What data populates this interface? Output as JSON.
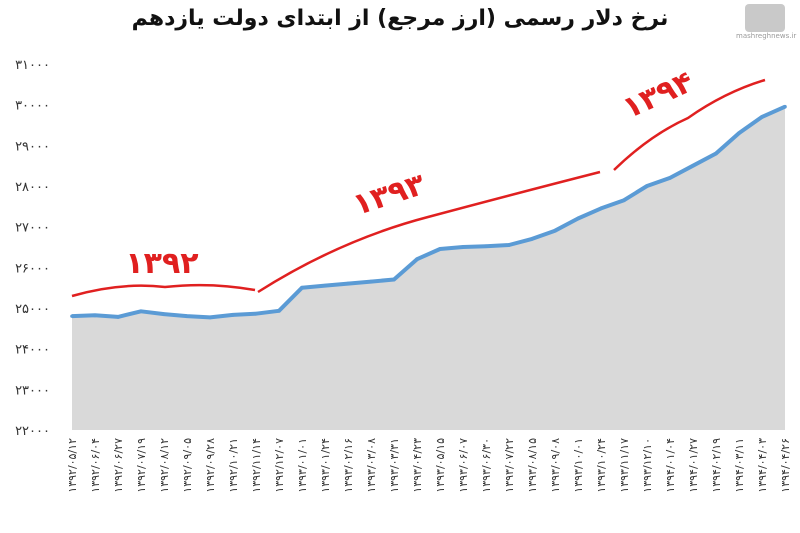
{
  "chart_data": {
    "type": "area",
    "title": "نرخ دلار رسمی (ارز مرجع) از ابتدای دولت یازدهم",
    "ylim": [
      22000,
      31000
    ],
    "y_ticks": [
      22000,
      23000,
      24000,
      25000,
      26000,
      27000,
      28000,
      29000,
      30000,
      31000
    ],
    "y_tick_labels": [
      "۲۲۰۰۰",
      "۲۳۰۰۰",
      "۲۴۰۰۰",
      "۲۵۰۰۰",
      "۲۶۰۰۰",
      "۲۷۰۰۰",
      "۲۸۰۰۰",
      "۲۹۰۰۰",
      "۳۰۰۰۰",
      "۳۱۰۰۰"
    ],
    "categories": [
      "۱۳۹۲/۰۵/۱۲",
      "۱۳۹۲/۰۶/۰۴",
      "۱۳۹۲/۰۶/۲۷",
      "۱۳۹۲/۰۷/۱۹",
      "۱۳۹۲/۰۸/۱۲",
      "۱۳۹۲/۰۹/۰۵",
      "۱۳۹۲/۰۹/۲۸",
      "۱۳۹۲/۱۰/۲۱",
      "۱۳۹۲/۱۱/۱۴",
      "۱۳۹۲/۱۲/۰۷",
      "۱۳۹۳/۰۱/۰۱",
      "۱۳۹۳/۰۱/۲۴",
      "۱۳۹۳/۰۲/۱۶",
      "۱۳۹۳/۰۳/۰۸",
      "۱۳۹۳/۰۳/۳۱",
      "۱۳۹۳/۰۴/۲۳",
      "۱۳۹۳/۰۵/۱۵",
      "۱۳۹۳/۰۶/۰۷",
      "۱۳۹۳/۰۶/۳۰",
      "۱۳۹۳/۰۷/۲۲",
      "۱۳۹۳/۰۸/۱۵",
      "۱۳۹۳/۰۹/۰۸",
      "۱۳۹۳/۱۰/۰۱",
      "۱۳۹۳/۱۰/۲۴",
      "۱۳۹۳/۱۱/۱۷",
      "۱۳۹۳/۱۲/۱۰",
      "۱۳۹۴/۰۱/۰۴",
      "۱۳۹۴/۰۱/۲۷",
      "۱۳۹۴/۰۲/۱۹",
      "۱۳۹۴/۰۳/۱۱",
      "۱۳۹۴/۰۴/۰۳",
      "۱۳۹۴/۰۴/۲۶"
    ],
    "series": [
      {
        "values": [
          24800,
          24820,
          24780,
          24920,
          24850,
          24800,
          24770,
          24830,
          24860,
          24930,
          25500,
          25550,
          25600,
          25650,
          25700,
          26200,
          26450,
          26500,
          26520,
          26550,
          26700,
          26900,
          27200,
          27450,
          27650,
          28000,
          28200,
          28500,
          28800,
          29300,
          29700,
          29950
        ]
      }
    ],
    "annotations": [
      "۱۳۹۲",
      "۱۳۹۳",
      "۱۳۹۴"
    ],
    "grid": false,
    "colors": {
      "line": "#5b9bd5",
      "fill": "#d9d9d9",
      "annotation": "#e02020"
    }
  },
  "watermark": {
    "site": "mashreghnews.ir"
  }
}
